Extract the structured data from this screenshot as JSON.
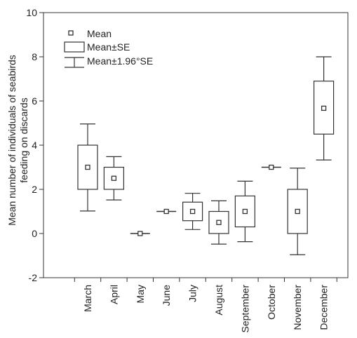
{
  "chart_data": {
    "type": "boxplot",
    "title": "",
    "xlabel": "",
    "ylabel": "Mean number of individuals of seabirds feeding on discards",
    "ylabel_lines": [
      "Mean number of individuals of seabirds",
      "feeding on discards"
    ],
    "ylim": [
      -2,
      10
    ],
    "yticks": [
      -2,
      0,
      2,
      4,
      6,
      8,
      10
    ],
    "grid": false,
    "legend": {
      "position": "top-left",
      "entries": [
        "Mean",
        "Mean±SE",
        "Mean±1.96°SE"
      ]
    },
    "categories": [
      "March",
      "April",
      "May",
      "June",
      "July",
      "August",
      "September",
      "October",
      "November",
      "December"
    ],
    "series": [
      {
        "category": "March",
        "mean": 3.0,
        "se_low": 2.0,
        "se_high": 4.0,
        "ci_low": 1.02,
        "ci_high": 4.96
      },
      {
        "category": "April",
        "mean": 2.5,
        "se_low": 2.0,
        "se_high": 3.0,
        "ci_low": 1.52,
        "ci_high": 3.48
      },
      {
        "category": "May",
        "mean": 0.0,
        "se_low": 0.0,
        "se_high": 0.0,
        "ci_low": 0.0,
        "ci_high": 0.0
      },
      {
        "category": "June",
        "mean": 1.0,
        "se_low": 1.0,
        "se_high": 1.0,
        "ci_low": 1.0,
        "ci_high": 1.0
      },
      {
        "category": "July",
        "mean": 1.0,
        "se_low": 0.58,
        "se_high": 1.42,
        "ci_low": 0.18,
        "ci_high": 1.82
      },
      {
        "category": "August",
        "mean": 0.5,
        "se_low": 0.0,
        "se_high": 1.0,
        "ci_low": -0.48,
        "ci_high": 1.48
      },
      {
        "category": "September",
        "mean": 1.0,
        "se_low": 0.3,
        "se_high": 1.7,
        "ci_low": -0.37,
        "ci_high": 2.37
      },
      {
        "category": "October",
        "mean": 3.0,
        "se_low": 3.0,
        "se_high": 3.0,
        "ci_low": 3.0,
        "ci_high": 3.0
      },
      {
        "category": "November",
        "mean": 1.0,
        "se_low": 0.0,
        "se_high": 2.0,
        "ci_low": -0.96,
        "ci_high": 2.96
      },
      {
        "category": "December",
        "mean": 5.67,
        "se_low": 4.5,
        "se_high": 6.9,
        "ci_low": 3.33,
        "ci_high": 8.0
      }
    ]
  }
}
